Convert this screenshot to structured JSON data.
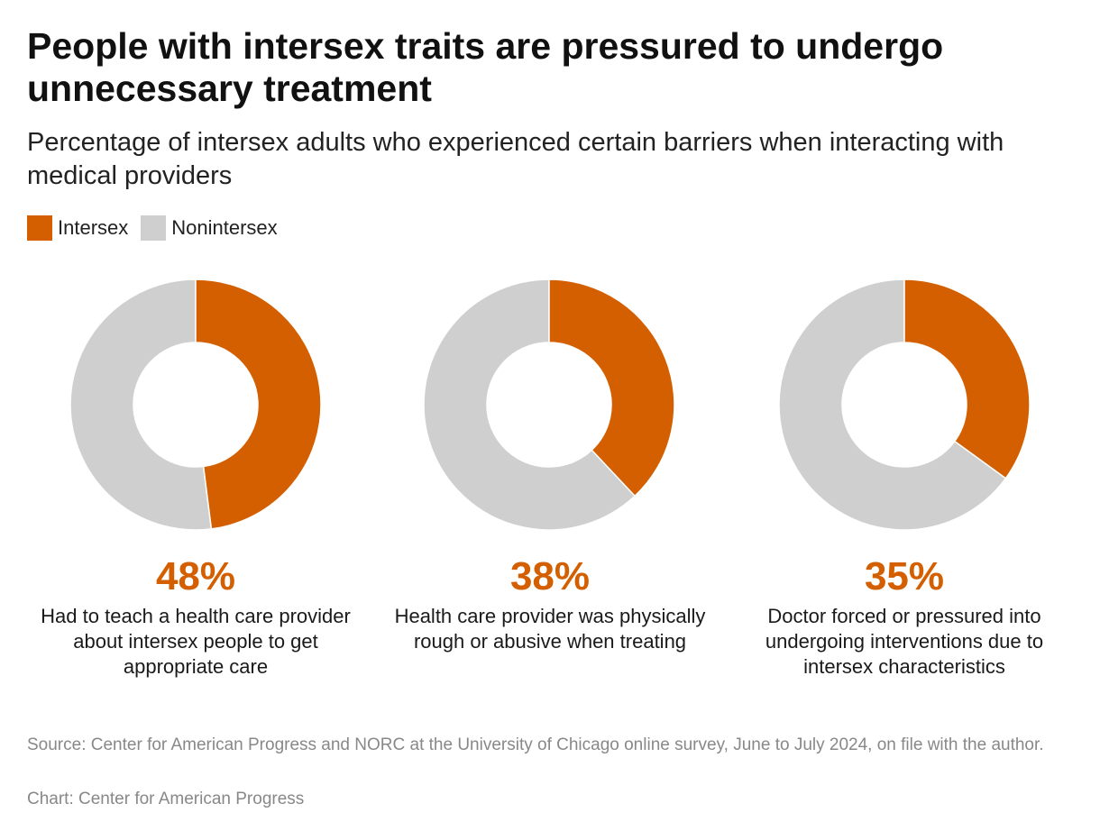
{
  "title": "People with intersex traits are pressured to undergo unnecessary treatment",
  "subtitle": "Percentage of intersex adults who experienced certain barriers when interacting with medical providers",
  "legend": {
    "intersex": "Intersex",
    "nonintersex": "Nonintersex"
  },
  "colors": {
    "intersex": "#d35f00",
    "nonintersex": "#cfcfcf"
  },
  "chart_data": {
    "type": "pie",
    "title": "People with intersex traits are pressured to undergo unnecessary treatment",
    "series_names": [
      "Intersex",
      "Nonintersex"
    ],
    "charts": [
      {
        "value": 48,
        "label": "48%",
        "description": "Had to teach a health care provider about intersex people to get appropriate care"
      },
      {
        "value": 38,
        "label": "38%",
        "description": "Health care provider was physically rough or abusive when treating"
      },
      {
        "value": 35,
        "label": "35%",
        "description": "Doctor forced or pressured into undergoing interventions due to intersex characteristics"
      }
    ]
  },
  "source": "Source: Center for American Progress and NORC at the University of Chicago online survey, June to July 2024, on file with the author.",
  "credit": "Chart: Center for American Progress"
}
